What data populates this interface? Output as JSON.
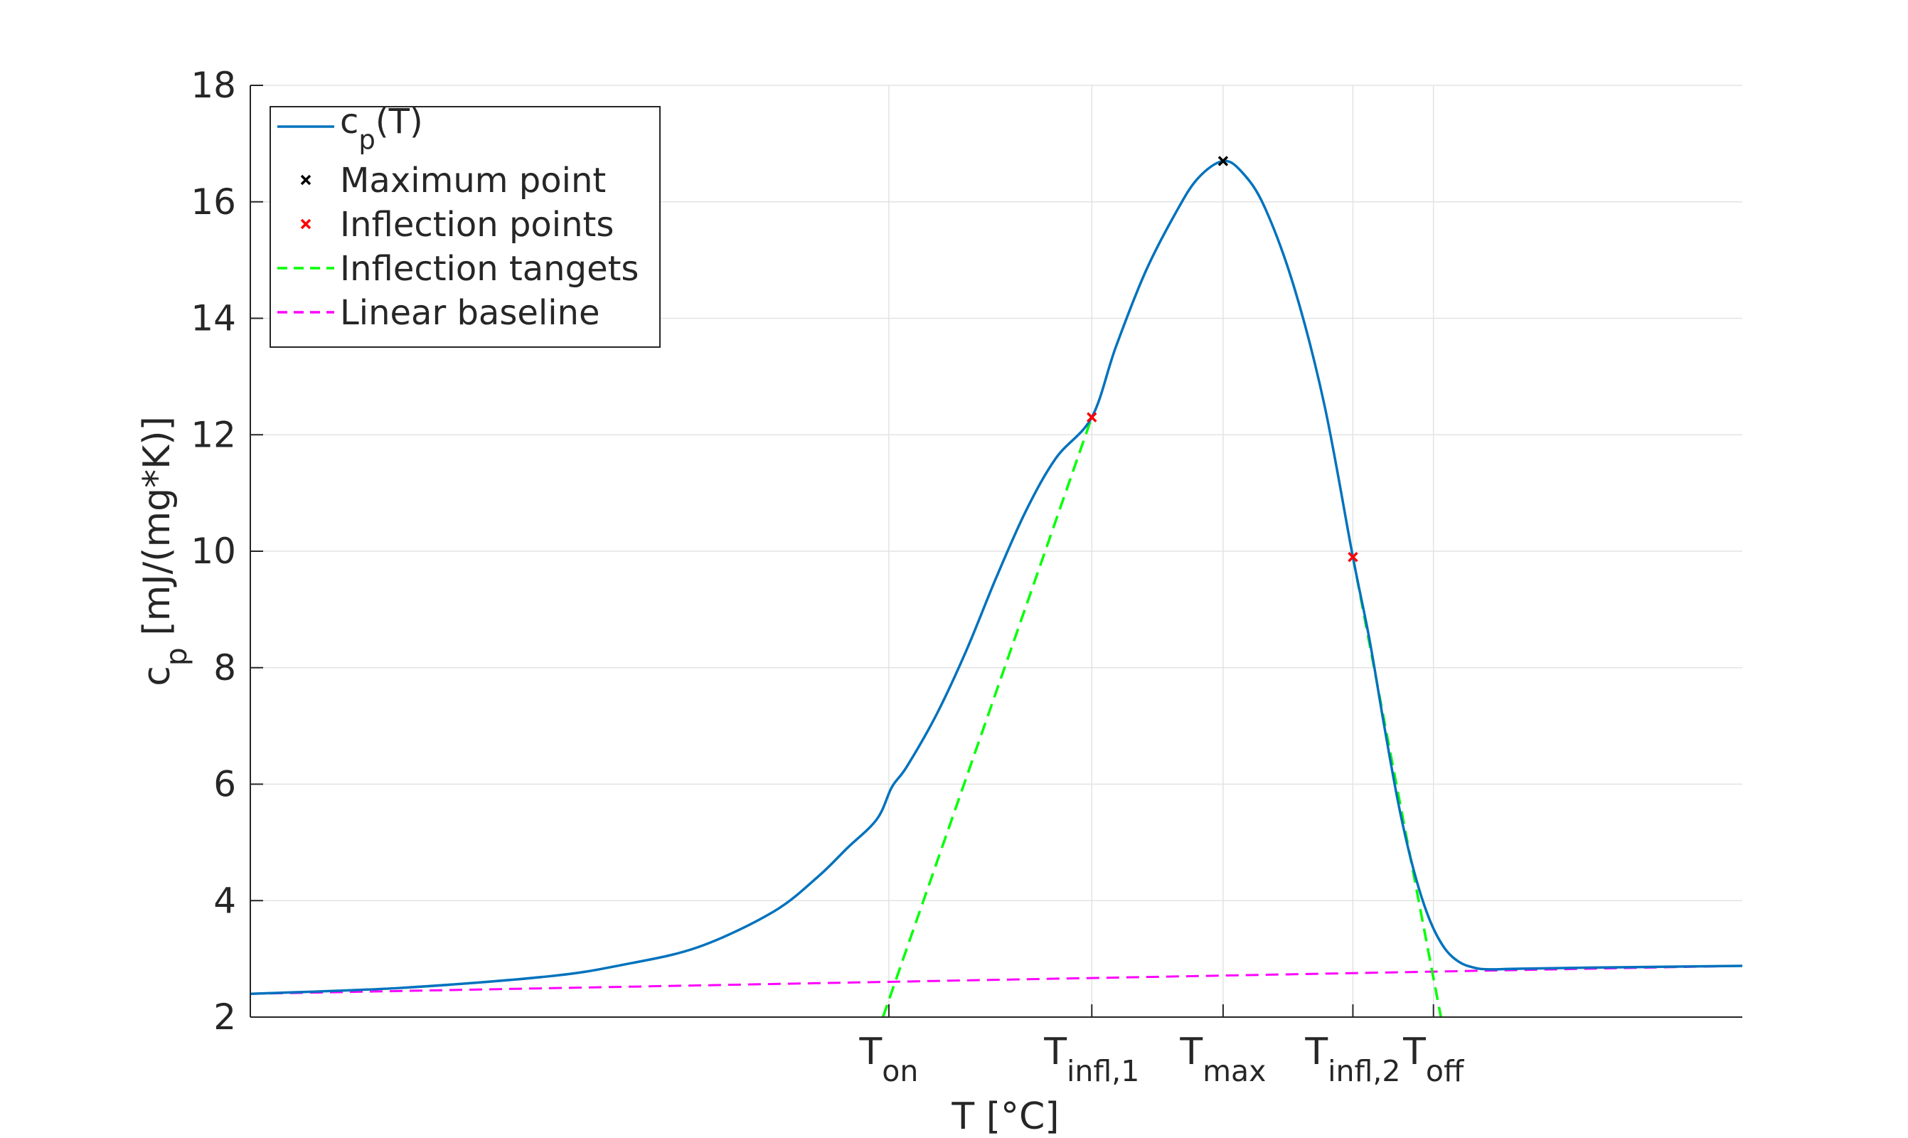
{
  "chart_data": {
    "type": "line",
    "xlabel": "T [°C]",
    "ylabel": {
      "main": "c",
      "sub": "p",
      "rest": " [mJ/(mg*K)]"
    },
    "ylim": [
      2,
      18
    ],
    "xlim": [
      0,
      100
    ],
    "yticks": [
      2,
      4,
      6,
      8,
      10,
      12,
      14,
      16,
      18
    ],
    "grid": true,
    "legend_position": "top-left",
    "xticks": [
      {
        "x": 42.8,
        "main": "T",
        "sub": "on"
      },
      {
        "x": 56.4,
        "main": "T",
        "sub": "infl,1"
      },
      {
        "x": 65.2,
        "main": "T",
        "sub": "max"
      },
      {
        "x": 73.9,
        "main": "T",
        "sub": "infl,2"
      },
      {
        "x": 79.3,
        "main": "T",
        "sub": "off"
      }
    ],
    "series": [
      {
        "name": "c_p(T)",
        "legend_main": "c",
        "legend_sub": "p",
        "legend_rest": "(T)",
        "kind": "line",
        "color": "#0072BD",
        "x": [
          0,
          10,
          20,
          25,
          30,
          35,
          38,
          40,
          42,
          43,
          44,
          46,
          48,
          50,
          52,
          54,
          56.4,
          58,
          60,
          62,
          63.5,
          65.2,
          66.5,
          68,
          70,
          72,
          73.9,
          75,
          76,
          77,
          78,
          79,
          80,
          81,
          82,
          83,
          85,
          90,
          100
        ],
        "y": [
          2.4,
          2.5,
          2.7,
          2.9,
          3.2,
          3.8,
          4.4,
          4.9,
          5.4,
          5.95,
          6.3,
          7.2,
          8.3,
          9.55,
          10.7,
          11.6,
          12.3,
          13.5,
          14.8,
          15.8,
          16.4,
          16.7,
          16.5,
          15.9,
          14.5,
          12.5,
          9.9,
          8.5,
          7.0,
          5.6,
          4.5,
          3.7,
          3.2,
          2.95,
          2.85,
          2.82,
          2.83,
          2.85,
          2.88
        ]
      },
      {
        "name": "Maximum point",
        "kind": "marker",
        "color": "#000000",
        "x": [
          65.2
        ],
        "y": [
          16.7
        ]
      },
      {
        "name": "Inflection points",
        "kind": "marker",
        "color": "#FF0000",
        "x": [
          56.4,
          73.9
        ],
        "y": [
          12.3,
          9.9
        ]
      },
      {
        "name": "Inflection tangets",
        "kind": "dashed",
        "color": "#00FF00",
        "segments": [
          {
            "x": [
              42.4,
              56.4
            ],
            "y": [
              2.0,
              12.3
            ]
          },
          {
            "x": [
              73.9,
              79.8
            ],
            "y": [
              9.9,
              2.0
            ]
          }
        ]
      },
      {
        "name": "Linear baseline",
        "kind": "dashed",
        "color": "#FF00FF",
        "x": [
          0,
          100
        ],
        "y": [
          2.4,
          2.88
        ]
      }
    ]
  }
}
